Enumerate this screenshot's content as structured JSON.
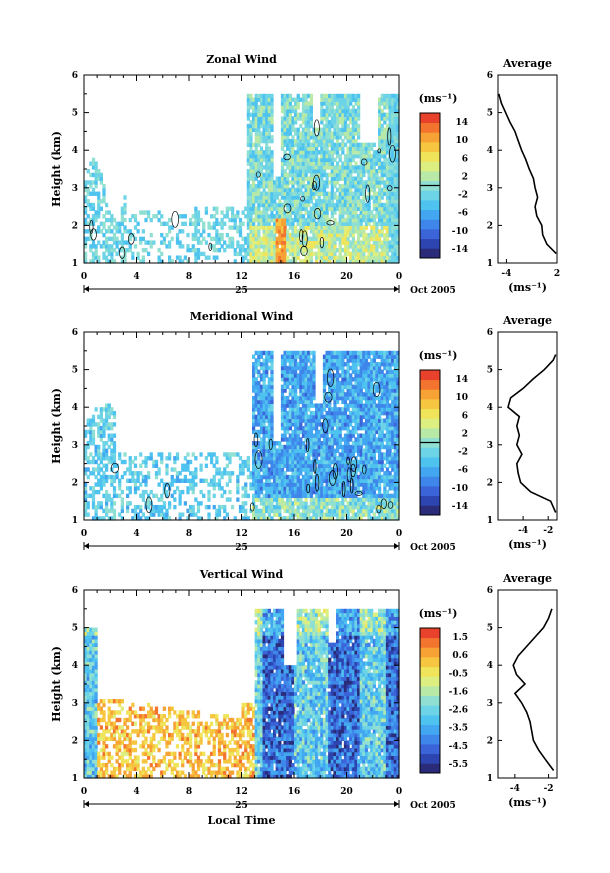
{
  "chart_data": [
    {
      "type": "heatmap",
      "title": "Zonal Wind",
      "ylabel": "Height (km)",
      "xlabel": "",
      "x_ticks": [
        "0",
        "4",
        "8",
        "12",
        "16",
        "20",
        "0"
      ],
      "x_range_hours": [
        0,
        24
      ],
      "date_label": "25",
      "month_label": "Oct 2005",
      "yticks": [
        "1",
        "2",
        "3",
        "4",
        "5",
        "6"
      ],
      "ylim": [
        1,
        6
      ],
      "colorbar": {
        "unit": "(ms⁻¹)",
        "tick_labels": [
          "14",
          "10",
          "6",
          "2",
          "-2",
          "-6",
          "-10",
          "-14"
        ],
        "min": -16,
        "max": 16,
        "zero_line": 0
      },
      "profile": {
        "title": "Average",
        "xlabel": "(ms⁻¹)",
        "xticks": [
          "-4",
          "2"
        ],
        "xtick_values": [
          -4,
          2
        ],
        "xlim": [
          -5,
          2
        ],
        "height_km": [
          1.25,
          1.5,
          1.75,
          2.0,
          2.25,
          2.5,
          2.75,
          3.0,
          3.25,
          3.5,
          3.75,
          4.0,
          4.25,
          4.5,
          4.75,
          5.0,
          5.25,
          5.5
        ],
        "value": [
          1.9,
          0.8,
          0.3,
          0.2,
          -0.4,
          -0.6,
          -0.3,
          -0.6,
          -0.8,
          -1.3,
          -1.7,
          -2.2,
          -2.6,
          -3.0,
          -3.6,
          -4.1,
          -4.6,
          -4.9
        ]
      }
    },
    {
      "type": "heatmap",
      "title": "Meridional Wind",
      "ylabel": "Height (km)",
      "xlabel": "",
      "x_ticks": [
        "0",
        "4",
        "8",
        "12",
        "16",
        "20",
        "0"
      ],
      "x_range_hours": [
        0,
        24
      ],
      "date_label": "25",
      "month_label": "Oct 2005",
      "yticks": [
        "1",
        "2",
        "3",
        "4",
        "5",
        "6"
      ],
      "ylim": [
        1,
        6
      ],
      "colorbar": {
        "unit": "(ms⁻¹)",
        "tick_labels": [
          "14",
          "10",
          "6",
          "2",
          "-2",
          "-6",
          "-10",
          "-14"
        ],
        "min": -16,
        "max": 16,
        "zero_line": 0
      },
      "profile": {
        "title": "Average",
        "xlabel": "(ms⁻¹)",
        "xticks": [
          "-4",
          "-2"
        ],
        "xtick_values": [
          -4,
          -2
        ],
        "xlim": [
          -6,
          -1.3
        ],
        "height_km": [
          1.2,
          1.5,
          1.75,
          2.0,
          2.25,
          2.5,
          2.75,
          3.0,
          3.25,
          3.5,
          3.75,
          4.0,
          4.25,
          4.5,
          4.75,
          5.0,
          5.25,
          5.4
        ],
        "value": [
          -1.4,
          -1.8,
          -3.4,
          -4.2,
          -4.4,
          -4.5,
          -4.1,
          -4.5,
          -4.3,
          -4.5,
          -4.3,
          -5.2,
          -5.0,
          -4.0,
          -3.2,
          -2.3,
          -1.6,
          -1.4
        ]
      }
    },
    {
      "type": "heatmap",
      "title": "Vertical Wind",
      "ylabel": "Height (km)",
      "xlabel": "Local Time",
      "x_ticks": [
        "0",
        "4",
        "8",
        "12",
        "16",
        "20",
        "0"
      ],
      "x_range_hours": [
        0,
        24
      ],
      "date_label": "25",
      "month_label": "Oct 2005",
      "yticks": [
        "1",
        "2",
        "3",
        "4",
        "5",
        "6"
      ],
      "ylim": [
        1,
        6
      ],
      "colorbar": {
        "unit": "(ms⁻¹)",
        "tick_labels": [
          "1.5",
          "0.6",
          "-0.5",
          "-1.6",
          "-2.6",
          "-3.5",
          "-4.5",
          "-5.5"
        ],
        "min": -6,
        "max": 2
      },
      "profile": {
        "title": "Average",
        "xlabel": "(ms⁻¹)",
        "xticks": [
          "-4",
          "-2"
        ],
        "xtick_values": [
          -4,
          -2
        ],
        "xlim": [
          -5,
          -1.5
        ],
        "height_km": [
          1.2,
          1.5,
          1.75,
          2.0,
          2.25,
          2.5,
          2.75,
          3.0,
          3.25,
          3.5,
          3.75,
          4.0,
          4.25,
          4.5,
          4.75,
          5.0,
          5.25,
          5.5
        ],
        "value": [
          -1.7,
          -2.2,
          -2.6,
          -2.9,
          -3.0,
          -3.1,
          -3.3,
          -3.6,
          -4.0,
          -3.4,
          -3.9,
          -4.1,
          -3.8,
          -3.3,
          -2.8,
          -2.3,
          -2.0,
          -1.8
        ]
      }
    }
  ]
}
